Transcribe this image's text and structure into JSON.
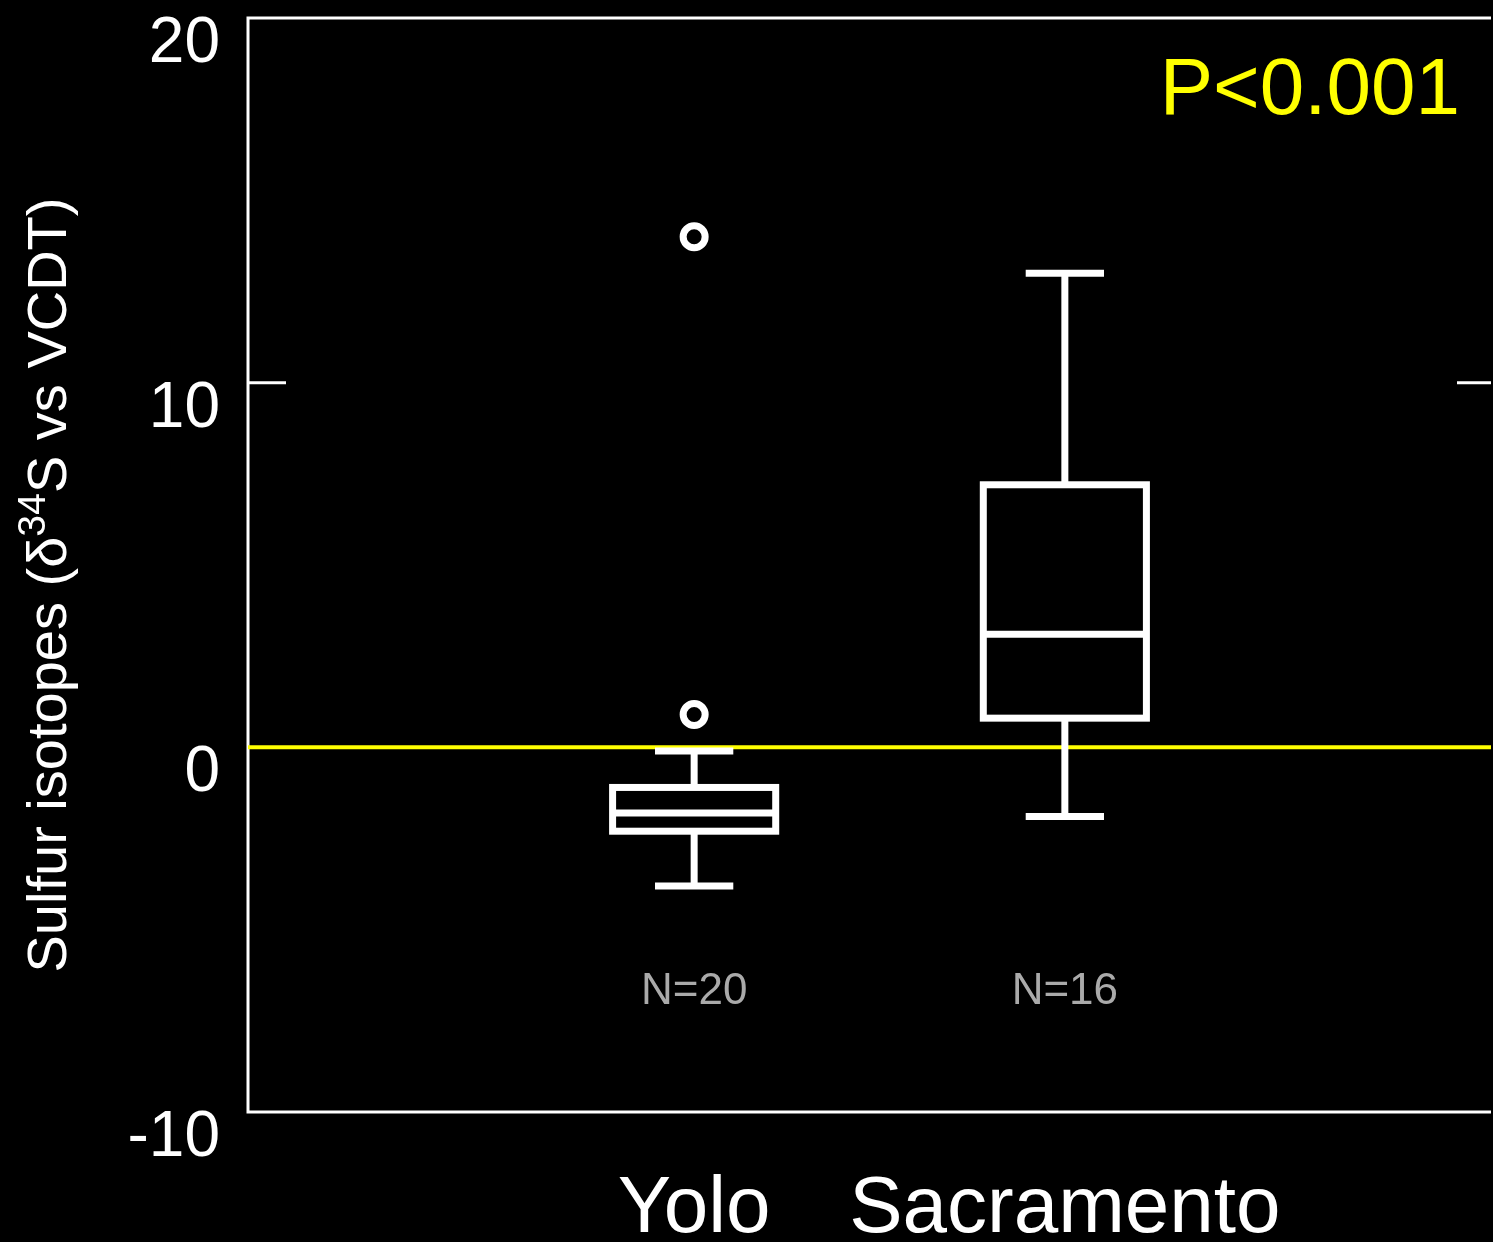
{
  "chart_data": {
    "type": "box",
    "ylabel": "Sulfur isotopes (δ$^{34}$S vs VCDT)",
    "categories": [
      "Yolo",
      "Sacramento"
    ],
    "boxes": [
      {
        "low": -3.8,
        "q1": -2.3,
        "median": -1.8,
        "q3": -1.1,
        "high": -0.1,
        "outliers": [
          14,
          0.9
        ]
      },
      {
        "low": -1.9,
        "q1": 0.8,
        "median": 3.1,
        "q3": 7.2,
        "high": 13
      }
    ],
    "color": "#ffffff",
    "ylim": [
      -10,
      20
    ],
    "yticks": [
      -10,
      0,
      10,
      20
    ],
    "grid": false,
    "ref_lines": [
      {
        "axis": "y",
        "value": 0,
        "color": "#ffff00"
      }
    ],
    "annotations": [
      "P<0.001",
      "N=20",
      "N=16"
    ]
  }
}
